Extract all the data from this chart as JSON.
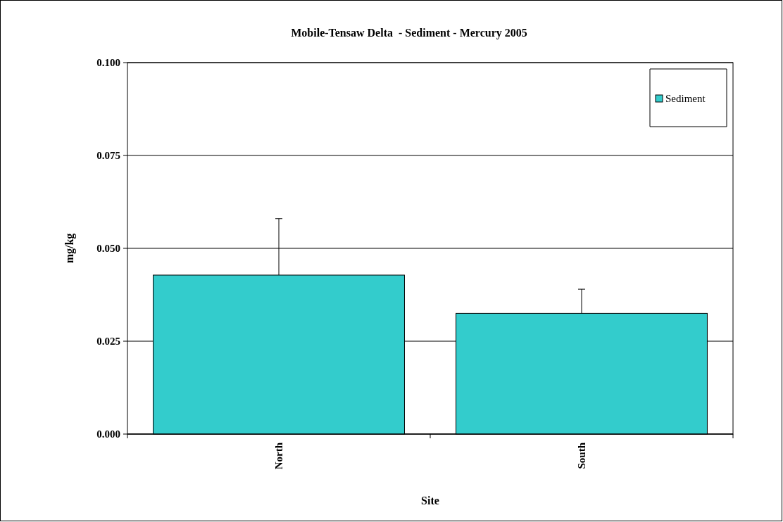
{
  "chart_data": {
    "type": "bar",
    "title": "Mobile-Tensaw Delta  - Sediment - Mercury 2005",
    "xlabel": "Site",
    "ylabel": "mg/kg",
    "categories": [
      "North",
      "South"
    ],
    "series": [
      {
        "name": "Sediment",
        "color": "#33cccc",
        "values": [
          0.0428,
          0.0325
        ],
        "errors": [
          [
            0.0428,
            0.058
          ],
          [
            0.0325,
            0.039
          ]
        ]
      }
    ],
    "ylim": [
      0,
      0.1
    ],
    "yticks": [
      {
        "value": 0,
        "label": "0.000"
      },
      {
        "value": 0.025,
        "label": "0.025"
      },
      {
        "value": 0.05,
        "label": "0.050"
      },
      {
        "value": 0.075,
        "label": "0.075"
      },
      {
        "value": 0.1,
        "label": "0.100"
      }
    ],
    "grid": "y",
    "legend": "top right"
  }
}
